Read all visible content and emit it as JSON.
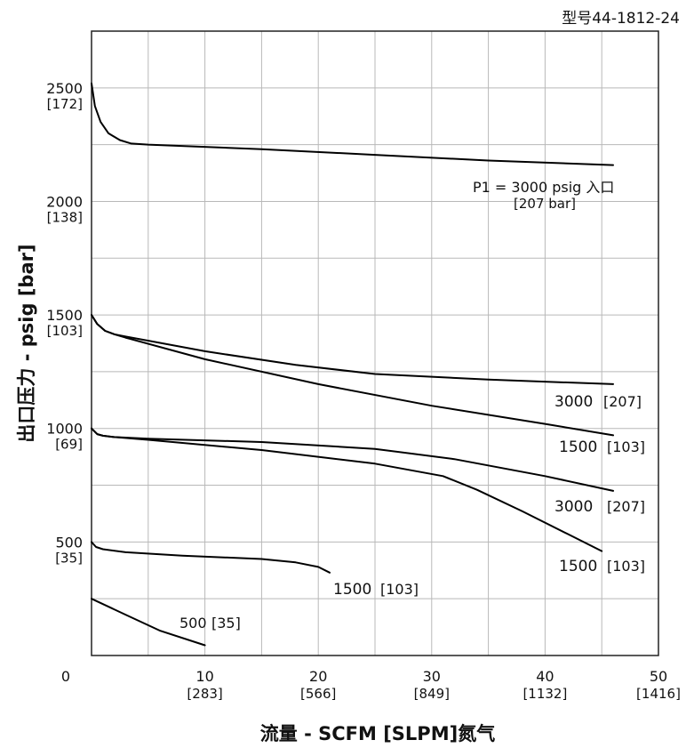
{
  "chart_data": {
    "type": "line",
    "model": "型号44-1812-24",
    "xlabel": "流量 - SCFM [SLPM]氮气",
    "ylabel": "出口压力 - psig [bar]",
    "xlim": [
      0,
      50
    ],
    "ylim": [
      0,
      2750
    ],
    "grid": true,
    "x_ticks": [
      {
        "value": 0,
        "label": "0",
        "sub": ""
      },
      {
        "value": 10,
        "label": "10",
        "sub": "[283]"
      },
      {
        "value": 20,
        "label": "20",
        "sub": "[566]"
      },
      {
        "value": 30,
        "label": "30",
        "sub": "[849]"
      },
      {
        "value": 40,
        "label": "40",
        "sub": "[1132]"
      },
      {
        "value": 50,
        "label": "50",
        "sub": "[1416]"
      }
    ],
    "y_ticks": [
      {
        "value": 2500,
        "label": "2500",
        "sub": "[172]"
      },
      {
        "value": 2000,
        "label": "2000",
        "sub": "[138]"
      },
      {
        "value": 1500,
        "label": "1500",
        "sub": "[103]"
      },
      {
        "value": 1000,
        "label": "1000",
        "sub": "[69]"
      },
      {
        "value": 500,
        "label": "500",
        "sub": "[35]"
      }
    ],
    "series": [
      {
        "main": "P1 = 3000 psig 入口",
        "sub": "[207 bar]",
        "points": [
          [
            0,
            2520
          ],
          [
            0.3,
            2420
          ],
          [
            0.8,
            2350
          ],
          [
            1.5,
            2300
          ],
          [
            2.5,
            2270
          ],
          [
            3.5,
            2255
          ],
          [
            5,
            2250
          ],
          [
            15,
            2230
          ],
          [
            25,
            2205
          ],
          [
            35,
            2180
          ],
          [
            46,
            2160
          ]
        ]
      },
      {
        "main": "3000",
        "sub": "[207]",
        "points": [
          [
            0,
            1500
          ],
          [
            0.5,
            1460
          ],
          [
            1.2,
            1430
          ],
          [
            2,
            1415
          ],
          [
            3,
            1405
          ],
          [
            10,
            1340
          ],
          [
            18,
            1280
          ],
          [
            25,
            1240
          ],
          [
            35,
            1215
          ],
          [
            46,
            1195
          ]
        ]
      },
      {
        "main": "1500",
        "sub": "[103]",
        "points": [
          [
            0,
            1500
          ],
          [
            0.5,
            1460
          ],
          [
            1.2,
            1430
          ],
          [
            2,
            1415
          ],
          [
            3,
            1400
          ],
          [
            10,
            1305
          ],
          [
            20,
            1195
          ],
          [
            30,
            1100
          ],
          [
            40,
            1020
          ],
          [
            46,
            970
          ]
        ]
      },
      {
        "main": "3000",
        "sub": "[207]",
        "points": [
          [
            0,
            1000
          ],
          [
            0.5,
            975
          ],
          [
            1,
            968
          ],
          [
            2,
            962
          ],
          [
            5,
            955
          ],
          [
            15,
            940
          ],
          [
            25,
            910
          ],
          [
            32,
            865
          ],
          [
            40,
            790
          ],
          [
            46,
            725
          ]
        ]
      },
      {
        "main": "1500",
        "sub": "[103]",
        "points": [
          [
            0,
            1000
          ],
          [
            0.5,
            975
          ],
          [
            1,
            968
          ],
          [
            2,
            962
          ],
          [
            5,
            950
          ],
          [
            15,
            905
          ],
          [
            25,
            845
          ],
          [
            31,
            790
          ],
          [
            34,
            730
          ],
          [
            38,
            635
          ],
          [
            42,
            535
          ],
          [
            45,
            460
          ]
        ]
      },
      {
        "main": "1500",
        "sub": "[103]",
        "points": [
          [
            0,
            500
          ],
          [
            0.4,
            478
          ],
          [
            1,
            468
          ],
          [
            3,
            455
          ],
          [
            8,
            440
          ],
          [
            15,
            425
          ],
          [
            18,
            410
          ],
          [
            20,
            390
          ],
          [
            21,
            365
          ]
        ]
      },
      {
        "main": "500",
        "sub": "[35]",
        "points": [
          [
            0,
            250
          ],
          [
            3,
            180
          ],
          [
            6,
            110
          ],
          [
            10,
            45
          ]
        ]
      }
    ]
  }
}
